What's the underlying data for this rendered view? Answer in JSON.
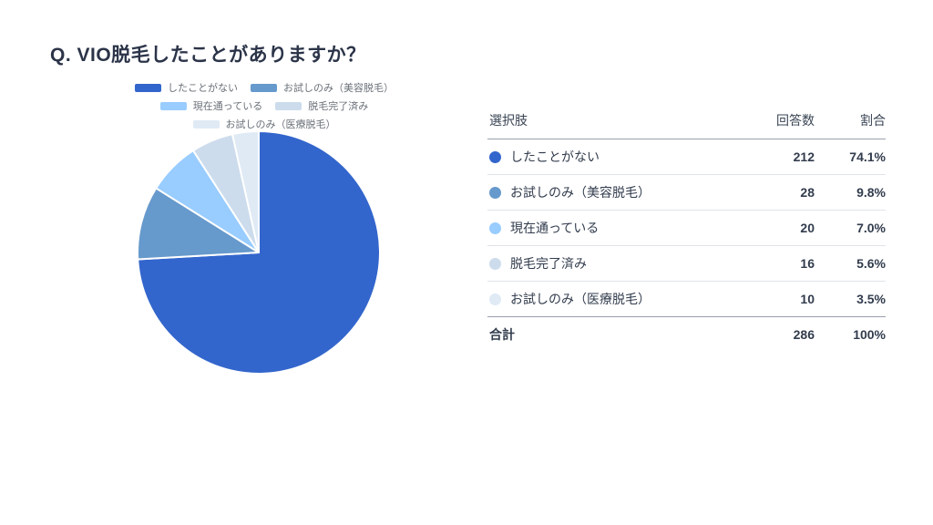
{
  "page": {
    "title": "Q. VIO脱毛したことがありますか？"
  },
  "chart_data": {
    "type": "pie",
    "title": "Q. VIO脱毛したことがありますか？",
    "categories": [
      "したことがない",
      "お試しのみ（美容脱毛）",
      "現在通っている",
      "脱毛完了済み",
      "お試しのみ（医療脱毛）"
    ],
    "values": [
      212,
      28,
      20,
      16,
      10
    ],
    "percentages": [
      74.1,
      9.8,
      7.0,
      5.6,
      3.5
    ],
    "total": 286,
    "colors": [
      "#3366cc",
      "#6699cc",
      "#99ccff",
      "#ccdcec",
      "#dfeaf5"
    ],
    "start_angle_deg": 0,
    "direction": "clockwise",
    "legend_position": "top",
    "legend_rows": [
      [
        0,
        1
      ],
      [
        2,
        3
      ],
      [
        4
      ]
    ],
    "slice_gap_color": "#ffffff"
  },
  "table": {
    "headers": {
      "choice": "選択肢",
      "count": "回答数",
      "percent": "割合"
    },
    "rows": [
      {
        "label": "したことがない",
        "count": "212",
        "percent": "74.1%",
        "color": "#3366cc"
      },
      {
        "label": "お試しのみ（美容脱毛）",
        "count": "28",
        "percent": "9.8%",
        "color": "#6699cc"
      },
      {
        "label": "現在通っている",
        "count": "20",
        "percent": "7.0%",
        "color": "#99ccff"
      },
      {
        "label": "脱毛完了済み",
        "count": "16",
        "percent": "5.6%",
        "color": "#ccdcec"
      },
      {
        "label": "お試しのみ（医療脱毛）",
        "count": "10",
        "percent": "3.5%",
        "color": "#dfeaf5"
      }
    ],
    "total_row": {
      "label": "合計",
      "count": "286",
      "percent": "100%"
    }
  }
}
